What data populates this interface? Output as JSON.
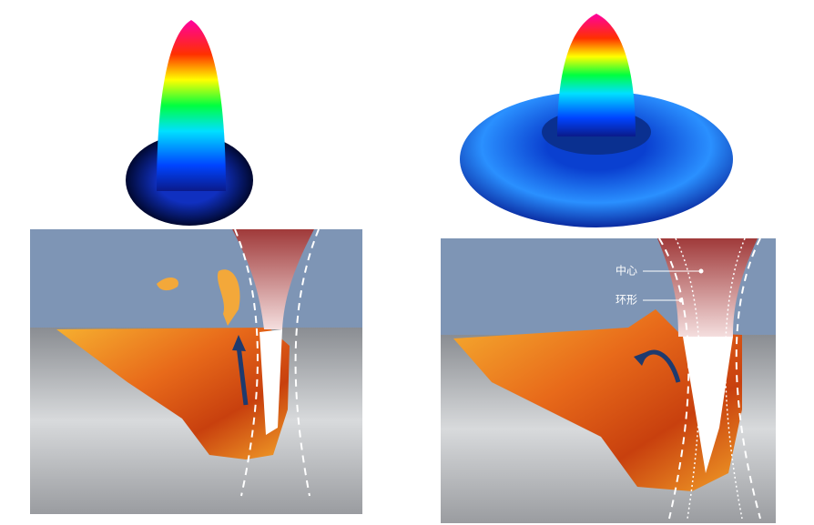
{
  "labels": {
    "center": "中心",
    "ring": "环形"
  }
}
